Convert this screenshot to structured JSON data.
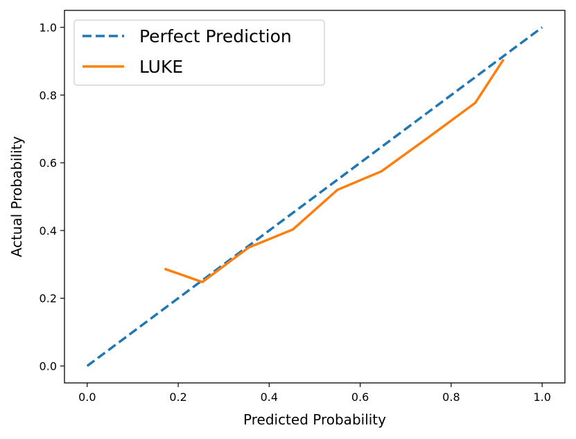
{
  "chart_data": {
    "type": "line",
    "xlabel": "Predicted Probability",
    "ylabel": "Actual Probability",
    "xlim": [
      -0.05,
      1.05
    ],
    "ylim": [
      -0.05,
      1.05
    ],
    "xticks": [
      "0.0",
      "0.2",
      "0.4",
      "0.6",
      "0.8",
      "1.0"
    ],
    "yticks": [
      "0.0",
      "0.2",
      "0.4",
      "0.6",
      "0.8",
      "1.0"
    ],
    "grid": false,
    "legend_position": "upper left",
    "series": [
      {
        "name": "Perfect Prediction",
        "style": "dashed",
        "color": "#1f77b4",
        "x": [
          0.0,
          1.0
        ],
        "y": [
          0.0,
          1.0
        ]
      },
      {
        "name": "LUKE",
        "style": "solid",
        "color": "#ff7f0e",
        "x": [
          0.17,
          0.253,
          0.355,
          0.452,
          0.55,
          0.647,
          0.752,
          0.853,
          0.915
        ],
        "y": [
          0.287,
          0.248,
          0.35,
          0.403,
          0.52,
          0.575,
          0.677,
          0.777,
          0.905
        ]
      }
    ]
  }
}
